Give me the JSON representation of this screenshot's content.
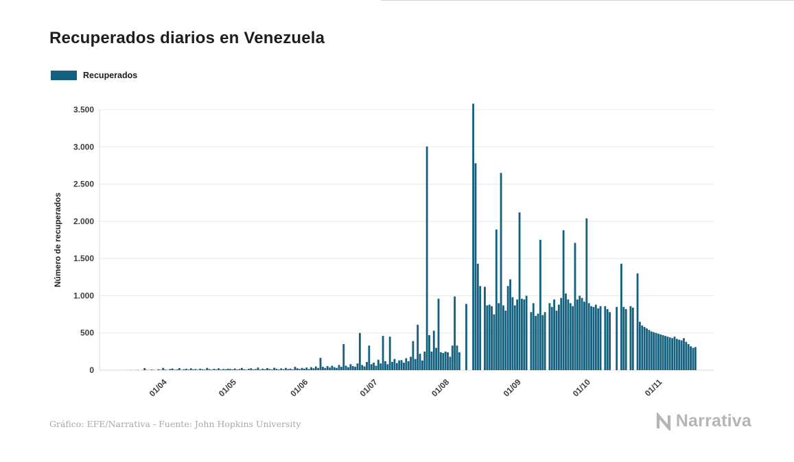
{
  "header": {
    "title": "Recuperados diarios en Venezuela"
  },
  "legend": {
    "label": "Recuperados",
    "color": "#14607f"
  },
  "footer": {
    "credit": "Gráfico: EFE/Narrativa - Fuente: John Hopkins University",
    "brand": "Narrativa"
  },
  "chart_data": {
    "type": "bar",
    "title": "Recuperados diarios en Venezuela",
    "series_name": "Recuperados",
    "ylabel": "Número de recuperados",
    "xlabel": "",
    "bar_color": "#14607f",
    "grid": true,
    "legend_position": "top-left",
    "ylim": [
      0,
      3580
    ],
    "yticks": [
      {
        "value": 0,
        "label": "0"
      },
      {
        "value": 500,
        "label": "500"
      },
      {
        "value": 1000,
        "label": "1.000"
      },
      {
        "value": 1500,
        "label": "1.500"
      },
      {
        "value": 2000,
        "label": "2.000"
      },
      {
        "value": 2500,
        "label": "2.500"
      },
      {
        "value": 3000,
        "label": "3.000"
      },
      {
        "value": 3500,
        "label": "3.500"
      }
    ],
    "xticks": [
      {
        "index": 27,
        "label": "01/04"
      },
      {
        "index": 57,
        "label": "01/05"
      },
      {
        "index": 88,
        "label": "01/06"
      },
      {
        "index": 118,
        "label": "01/07"
      },
      {
        "index": 149,
        "label": "01/08"
      },
      {
        "index": 180,
        "label": "01/09"
      },
      {
        "index": 210,
        "label": "01/10"
      },
      {
        "index": 241,
        "label": "01/11"
      }
    ],
    "values": [
      0,
      0,
      0,
      0,
      0,
      0,
      0,
      0,
      0,
      0,
      0,
      1,
      0,
      2,
      0,
      1,
      3,
      0,
      2,
      28,
      4,
      2,
      8,
      3,
      1,
      12,
      5,
      30,
      8,
      3,
      15,
      22,
      6,
      10,
      28,
      5,
      12,
      18,
      8,
      25,
      10,
      15,
      6,
      20,
      12,
      8,
      30,
      14,
      7,
      18,
      10,
      25,
      9,
      15,
      12,
      20,
      16,
      10,
      22,
      8,
      15,
      30,
      12,
      6,
      18,
      25,
      10,
      14,
      35,
      8,
      20,
      12,
      28,
      15,
      10,
      32,
      18,
      8,
      24,
      12,
      30,
      15,
      20,
      10,
      45,
      25,
      15,
      30,
      20,
      35,
      15,
      40,
      25,
      50,
      30,
      165,
      45,
      30,
      55,
      35,
      60,
      40,
      30,
      70,
      45,
      350,
      60,
      40,
      80,
      55,
      45,
      90,
      500,
      70,
      50,
      110,
      330,
      80,
      100,
      60,
      140,
      90,
      460,
      120,
      80,
      450,
      110,
      150,
      95,
      130,
      135,
      100,
      160,
      120,
      180,
      390,
      150,
      610,
      220,
      130,
      250,
      3005,
      470,
      250,
      530,
      300,
      960,
      240,
      230,
      250,
      240,
      180,
      330,
      990,
      330,
      240,
      0,
      0,
      890,
      0,
      0,
      3580,
      2780,
      1430,
      1130,
      0,
      1120,
      870,
      880,
      860,
      750,
      1890,
      900,
      2650,
      870,
      800,
      1130,
      1220,
      980,
      870,
      950,
      2120,
      960,
      950,
      1000,
      0,
      780,
      900,
      730,
      760,
      1750,
      740,
      780,
      0,
      900,
      850,
      950,
      800,
      880,
      970,
      1880,
      1030,
      950,
      900,
      860,
      1710,
      950,
      1000,
      970,
      920,
      2040,
      900,
      860,
      850,
      880,
      830,
      860,
      0,
      860,
      820,
      780,
      0,
      0,
      850,
      0,
      1430,
      850,
      820,
      0,
      860,
      840,
      0,
      1300,
      650,
      600,
      580,
      560,
      540,
      520,
      510,
      500,
      490,
      480,
      470,
      460,
      450,
      440,
      430,
      450,
      420,
      410,
      400,
      430,
      380,
      350,
      320,
      300,
      310
    ]
  }
}
